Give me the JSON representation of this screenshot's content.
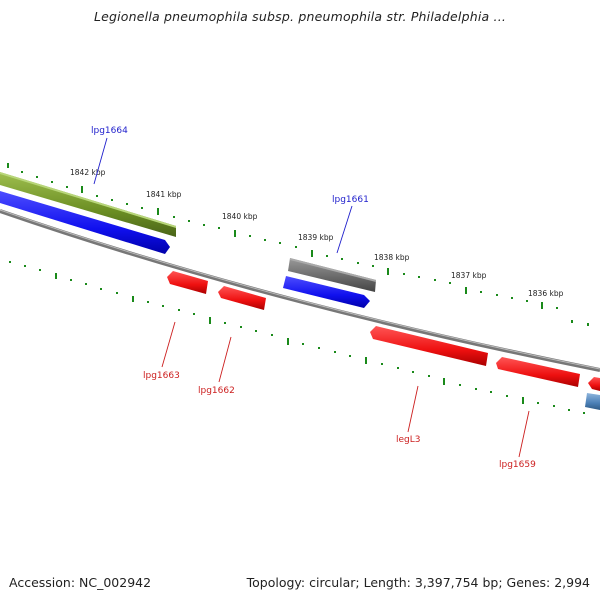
{
  "title": "Legionella pneumophila subsp. pneumophila str. Philadelphia ...",
  "footer": {
    "accession": "Accession: NC_002942",
    "topology": "Topology: circular; Length: 3,397,754 bp; Genes: 2,994"
  },
  "ticks": [
    "1842 kbp",
    "1841 kbp",
    "1840 kbp",
    "1839 kbp",
    "1838 kbp",
    "1837 kbp",
    "1836 kbp"
  ],
  "gene_labels": {
    "lpg1664": "lpg1664",
    "lpg1661": "lpg1661",
    "lpg1663": "lpg1663",
    "lpg1662": "lpg1662",
    "legL3": "legL3",
    "lpg1659": "lpg1659"
  },
  "colors": {
    "forward_cds": "#1a1aff",
    "reverse_cds": "#ff1a1a",
    "olive_feature": "#6b8e23",
    "gray_feature": "#6e6e6e",
    "steel_feature": "#4a7fb5",
    "backbone": "#888888",
    "tick": "#1a8a1a"
  }
}
